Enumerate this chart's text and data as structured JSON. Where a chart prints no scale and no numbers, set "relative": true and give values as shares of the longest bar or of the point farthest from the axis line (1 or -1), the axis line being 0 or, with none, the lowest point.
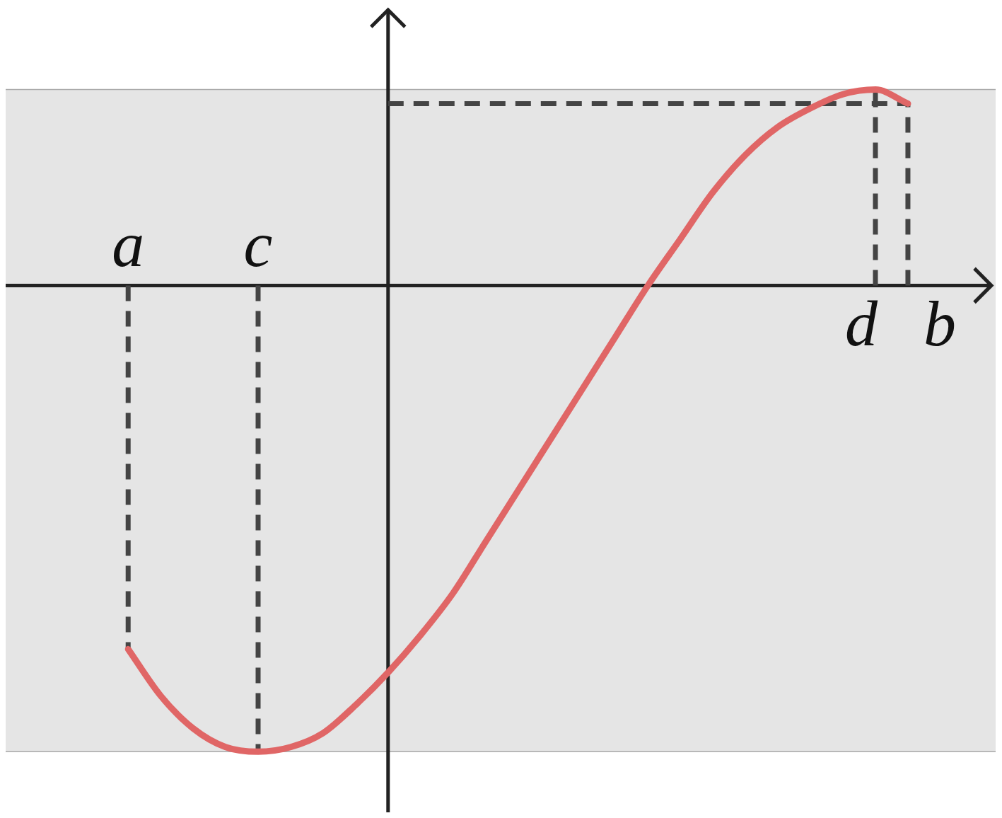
{
  "chart_data": {
    "type": "line",
    "relative": true,
    "marker": "none",
    "color": "#e06666",
    "categories": [
      null,
      null,
      null,
      null,
      null,
      null,
      null,
      null,
      null,
      null,
      null,
      null,
      null,
      null,
      null,
      null,
      null,
      null,
      null,
      null,
      null,
      null,
      null,
      null,
      null
    ],
    "values": [
      -0.78,
      -0.88,
      -0.95,
      -0.99,
      -1,
      -0.99,
      -0.96,
      -0.9,
      -0.83,
      -0.75,
      -0.66,
      -0.55,
      -0.44,
      -0.33,
      -0.22,
      -0.11,
      0,
      0.1,
      0.2,
      0.28,
      0.34,
      0.38,
      0.41,
      0.42,
      0.39
    ],
    "bands": [
      {
        "axis": "y",
        "from": -1,
        "to": 0.42,
        "color": "#000000"
      }
    ],
    "ref_lines": [
      {
        "axis": "y",
        "value": 0.39,
        "line_style": "dashed",
        "color": "#444444"
      }
    ],
    "annotations": [
      "a",
      "c",
      "d",
      "b"
    ]
  }
}
